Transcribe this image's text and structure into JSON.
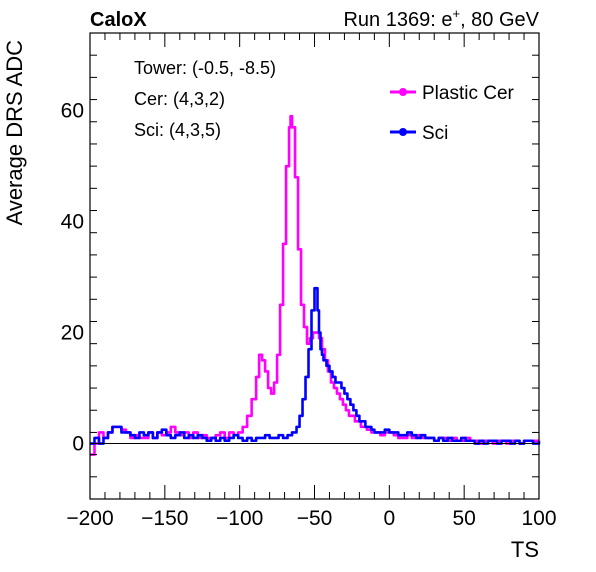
{
  "chart_data": {
    "type": "line",
    "experiment_label": "CaloX",
    "run_label": "Run 1369: e",
    "run_label_sup": "+",
    "run_label_suffix": ", 80 GeV",
    "xlabel": "TS",
    "ylabel": "Average DRS ADC",
    "xlim": [
      -200,
      100
    ],
    "ylim": [
      -10,
      74
    ],
    "x_ticks": [
      -200,
      -150,
      -100,
      -50,
      0,
      50,
      100
    ],
    "y_ticks": [
      0,
      20,
      40,
      60
    ],
    "grid": false,
    "legend_position": "top-right",
    "annotations": [
      "Tower: (-0.5, -8.5)",
      "Cer: (4,3,2)",
      "Sci: (4,3,5)"
    ],
    "series": [
      {
        "name": "Plastic Cer",
        "color": "#ff00ff",
        "points": [
          [
            -200,
            -2
          ],
          [
            -197,
            0
          ],
          [
            -194,
            2
          ],
          [
            -191,
            1
          ],
          [
            -188,
            2
          ],
          [
            -185,
            3
          ],
          [
            -182,
            3
          ],
          [
            -179,
            2.5
          ],
          [
            -176,
            2
          ],
          [
            -173,
            1
          ],
          [
            -170,
            1.5
          ],
          [
            -167,
            1
          ],
          [
            -164,
            1
          ],
          [
            -161,
            2
          ],
          [
            -158,
            1
          ],
          [
            -155,
            2
          ],
          [
            -152,
            1.5
          ],
          [
            -149,
            2
          ],
          [
            -146,
            3
          ],
          [
            -143,
            2
          ],
          [
            -140,
            1.5
          ],
          [
            -137,
            2
          ],
          [
            -134,
            1
          ],
          [
            -131,
            2
          ],
          [
            -128,
            1
          ],
          [
            -125,
            1.5
          ],
          [
            -122,
            1
          ],
          [
            -119,
            1
          ],
          [
            -116,
            1.5
          ],
          [
            -113,
            2
          ],
          [
            -110,
            1
          ],
          [
            -107,
            2
          ],
          [
            -104,
            1.5
          ],
          [
            -101,
            2
          ],
          [
            -98,
            3
          ],
          [
            -95,
            5
          ],
          [
            -92,
            8
          ],
          [
            -89,
            12
          ],
          [
            -87,
            16
          ],
          [
            -85,
            15
          ],
          [
            -83,
            13
          ],
          [
            -81,
            10
          ],
          [
            -79,
            9
          ],
          [
            -77,
            11
          ],
          [
            -75,
            16
          ],
          [
            -73,
            25
          ],
          [
            -71,
            36
          ],
          [
            -69,
            50
          ],
          [
            -67,
            57
          ],
          [
            -66,
            59
          ],
          [
            -65,
            57
          ],
          [
            -63,
            48
          ],
          [
            -61,
            35
          ],
          [
            -59,
            25
          ],
          [
            -57,
            21
          ],
          [
            -55,
            18
          ],
          [
            -53,
            19
          ],
          [
            -51,
            20
          ],
          [
            -49,
            20
          ],
          [
            -47,
            19
          ],
          [
            -45,
            17
          ],
          [
            -43,
            15
          ],
          [
            -41,
            13
          ],
          [
            -39,
            11
          ],
          [
            -37,
            10
          ],
          [
            -35,
            9
          ],
          [
            -33,
            8
          ],
          [
            -31,
            7
          ],
          [
            -29,
            6
          ],
          [
            -27,
            5
          ],
          [
            -25,
            5
          ],
          [
            -23,
            4
          ],
          [
            -21,
            4
          ],
          [
            -19,
            3
          ],
          [
            -17,
            3
          ],
          [
            -15,
            2.5
          ],
          [
            -12,
            2
          ],
          [
            -9,
            2
          ],
          [
            -6,
            1.5
          ],
          [
            -3,
            2
          ],
          [
            0,
            2
          ],
          [
            3,
            1.5
          ],
          [
            6,
            1
          ],
          [
            9,
            1
          ],
          [
            12,
            1.5
          ],
          [
            15,
            1
          ],
          [
            18,
            1.5
          ],
          [
            21,
            1
          ],
          [
            24,
            1
          ],
          [
            27,
            1
          ],
          [
            30,
            0.5
          ],
          [
            33,
            1
          ],
          [
            36,
            1
          ],
          [
            39,
            0.5
          ],
          [
            42,
            1
          ],
          [
            45,
            0.5
          ],
          [
            48,
            0.5
          ],
          [
            51,
            1
          ],
          [
            54,
            0.5
          ],
          [
            57,
            0.5
          ],
          [
            60,
            0
          ],
          [
            63,
            0.5
          ],
          [
            66,
            0.5
          ],
          [
            69,
            0
          ],
          [
            72,
            0.5
          ],
          [
            75,
            0.5
          ],
          [
            78,
            0
          ],
          [
            81,
            0.5
          ],
          [
            84,
            0.5
          ],
          [
            87,
            0
          ],
          [
            90,
            0.5
          ],
          [
            93,
            0.5
          ],
          [
            96,
            0.5
          ],
          [
            100,
            0.5
          ]
        ]
      },
      {
        "name": "Sci",
        "color": "#0000ff",
        "points": [
          [
            -200,
            0
          ],
          [
            -197,
            1
          ],
          [
            -194,
            0
          ],
          [
            -191,
            1
          ],
          [
            -188,
            2
          ],
          [
            -185,
            3
          ],
          [
            -182,
            3
          ],
          [
            -179,
            2
          ],
          [
            -176,
            2
          ],
          [
            -173,
            1.5
          ],
          [
            -170,
            1
          ],
          [
            -167,
            2
          ],
          [
            -164,
            1.5
          ],
          [
            -161,
            2
          ],
          [
            -158,
            1
          ],
          [
            -155,
            2
          ],
          [
            -152,
            2.5
          ],
          [
            -149,
            1.5
          ],
          [
            -146,
            1
          ],
          [
            -143,
            1.5
          ],
          [
            -140,
            2
          ],
          [
            -137,
            1
          ],
          [
            -134,
            1.5
          ],
          [
            -131,
            1
          ],
          [
            -128,
            1.5
          ],
          [
            -125,
            1
          ],
          [
            -122,
            0.5
          ],
          [
            -119,
            1
          ],
          [
            -116,
            0.5
          ],
          [
            -113,
            1
          ],
          [
            -110,
            0.5
          ],
          [
            -107,
            1
          ],
          [
            -104,
            1.5
          ],
          [
            -101,
            1
          ],
          [
            -98,
            0.5
          ],
          [
            -95,
            1
          ],
          [
            -92,
            0.5
          ],
          [
            -89,
            1
          ],
          [
            -86,
            1
          ],
          [
            -83,
            1.5
          ],
          [
            -80,
            1
          ],
          [
            -77,
            1
          ],
          [
            -74,
            1.5
          ],
          [
            -71,
            1
          ],
          [
            -68,
            1.5
          ],
          [
            -65,
            2
          ],
          [
            -62,
            3
          ],
          [
            -60,
            5
          ],
          [
            -58,
            8
          ],
          [
            -56,
            12
          ],
          [
            -54,
            17
          ],
          [
            -52,
            24
          ],
          [
            -50,
            28
          ],
          [
            -49,
            28
          ],
          [
            -48,
            24
          ],
          [
            -47,
            20
          ],
          [
            -46,
            17
          ],
          [
            -45,
            16
          ],
          [
            -44,
            15
          ],
          [
            -42,
            14
          ],
          [
            -40,
            13
          ],
          [
            -38,
            12
          ],
          [
            -36,
            11
          ],
          [
            -34,
            11
          ],
          [
            -32,
            10
          ],
          [
            -30,
            9
          ],
          [
            -28,
            8
          ],
          [
            -26,
            7
          ],
          [
            -24,
            6
          ],
          [
            -22,
            5
          ],
          [
            -20,
            4
          ],
          [
            -18,
            4
          ],
          [
            -16,
            3
          ],
          [
            -14,
            3
          ],
          [
            -12,
            2.5
          ],
          [
            -10,
            2
          ],
          [
            -8,
            2
          ],
          [
            -6,
            2
          ],
          [
            -3,
            2.5
          ],
          [
            0,
            2
          ],
          [
            3,
            2
          ],
          [
            6,
            1.5
          ],
          [
            9,
            1.5
          ],
          [
            12,
            2
          ],
          [
            15,
            1.5
          ],
          [
            18,
            1
          ],
          [
            21,
            1.5
          ],
          [
            24,
            1
          ],
          [
            27,
            1
          ],
          [
            30,
            0.5
          ],
          [
            33,
            1
          ],
          [
            36,
            0.5
          ],
          [
            39,
            1
          ],
          [
            42,
            0.5
          ],
          [
            45,
            0.5
          ],
          [
            48,
            1
          ],
          [
            51,
            0.5
          ],
          [
            54,
            0.5
          ],
          [
            57,
            0
          ],
          [
            60,
            0.5
          ],
          [
            63,
            0
          ],
          [
            66,
            0.5
          ],
          [
            69,
            0.5
          ],
          [
            72,
            0
          ],
          [
            75,
            0.5
          ],
          [
            78,
            0.5
          ],
          [
            81,
            0
          ],
          [
            84,
            0.5
          ],
          [
            87,
            0
          ],
          [
            90,
            0.5
          ],
          [
            93,
            0.5
          ],
          [
            96,
            0
          ],
          [
            100,
            0.5
          ]
        ]
      }
    ]
  }
}
